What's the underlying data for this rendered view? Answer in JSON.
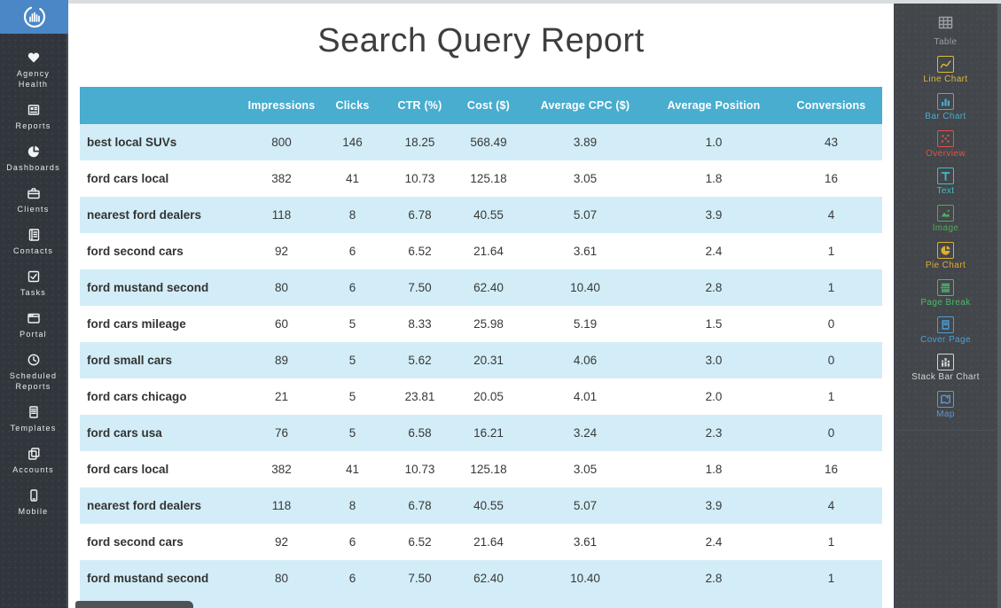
{
  "app": {
    "logo_name": "report-dial-logo"
  },
  "left_sidebar": {
    "items": [
      {
        "label": "Agency Health",
        "icon": "heart-icon"
      },
      {
        "label": "Reports",
        "icon": "newspaper-icon"
      },
      {
        "label": "Dashboards",
        "icon": "pie-gauge-icon"
      },
      {
        "label": "Clients",
        "icon": "briefcase-icon"
      },
      {
        "label": "Contacts",
        "icon": "address-book-icon"
      },
      {
        "label": "Tasks",
        "icon": "checkbox-icon"
      },
      {
        "label": "Portal",
        "icon": "browser-window-icon"
      },
      {
        "label": "Scheduled Reports",
        "icon": "clock-icon"
      },
      {
        "label": "Templates",
        "icon": "document-icon"
      },
      {
        "label": "Accounts",
        "icon": "stacked-cards-icon"
      },
      {
        "label": "Mobile",
        "icon": "smartphone-icon"
      }
    ]
  },
  "report": {
    "title": "Search Query Report",
    "table": {
      "columns": [
        "",
        "Impressions",
        "Clicks",
        "CTR (%)",
        "Cost ($)",
        "Average CPC ($)",
        "Average Position",
        "Conversions"
      ],
      "rows": [
        {
          "query": "best local SUVs",
          "impressions": "800",
          "clicks": "146",
          "ctr": "18.25",
          "cost": "568.49",
          "avg_cpc": "3.89",
          "avg_position": "1.0",
          "conversions": "43"
        },
        {
          "query": "ford cars local",
          "impressions": "382",
          "clicks": "41",
          "ctr": "10.73",
          "cost": "125.18",
          "avg_cpc": "3.05",
          "avg_position": "1.8",
          "conversions": "16"
        },
        {
          "query": "nearest ford dealers",
          "impressions": "118",
          "clicks": "8",
          "ctr": "6.78",
          "cost": "40.55",
          "avg_cpc": "5.07",
          "avg_position": "3.9",
          "conversions": "4"
        },
        {
          "query": "ford second cars",
          "impressions": "92",
          "clicks": "6",
          "ctr": "6.52",
          "cost": "21.64",
          "avg_cpc": "3.61",
          "avg_position": "2.4",
          "conversions": "1"
        },
        {
          "query": "ford mustand second",
          "impressions": "80",
          "clicks": "6",
          "ctr": "7.50",
          "cost": "62.40",
          "avg_cpc": "10.40",
          "avg_position": "2.8",
          "conversions": "1"
        },
        {
          "query": "ford cars mileage",
          "impressions": "60",
          "clicks": "5",
          "ctr": "8.33",
          "cost": "25.98",
          "avg_cpc": "5.19",
          "avg_position": "1.5",
          "conversions": "0"
        },
        {
          "query": "ford small cars",
          "impressions": "89",
          "clicks": "5",
          "ctr": "5.62",
          "cost": "20.31",
          "avg_cpc": "4.06",
          "avg_position": "3.0",
          "conversions": "0"
        },
        {
          "query": "ford cars chicago",
          "impressions": "21",
          "clicks": "5",
          "ctr": "23.81",
          "cost": "20.05",
          "avg_cpc": "4.01",
          "avg_position": "2.0",
          "conversions": "1"
        },
        {
          "query": "ford cars usa",
          "impressions": "76",
          "clicks": "5",
          "ctr": "6.58",
          "cost": "16.21",
          "avg_cpc": "3.24",
          "avg_position": "2.3",
          "conversions": "0"
        },
        {
          "query": "ford cars local",
          "impressions": "382",
          "clicks": "41",
          "ctr": "10.73",
          "cost": "125.18",
          "avg_cpc": "3.05",
          "avg_position": "1.8",
          "conversions": "16"
        },
        {
          "query": "nearest ford dealers",
          "impressions": "118",
          "clicks": "8",
          "ctr": "6.78",
          "cost": "40.55",
          "avg_cpc": "5.07",
          "avg_position": "3.9",
          "conversions": "4"
        },
        {
          "query": "ford second cars",
          "impressions": "92",
          "clicks": "6",
          "ctr": "6.52",
          "cost": "21.64",
          "avg_cpc": "3.61",
          "avg_position": "2.4",
          "conversions": "1"
        },
        {
          "query": "ford mustand second",
          "impressions": "80",
          "clicks": "6",
          "ctr": "7.50",
          "cost": "62.40",
          "avg_cpc": "10.40",
          "avg_position": "2.8",
          "conversions": "1"
        }
      ]
    }
  },
  "right_sidebar": {
    "widgets": [
      {
        "label": "Table",
        "icon": "table-icon",
        "color": "#9ba1a6"
      },
      {
        "label": "Line Chart",
        "icon": "line-chart-icon",
        "color": "#dfba3c"
      },
      {
        "label": "Bar Chart",
        "icon": "bar-chart-icon",
        "color": "#49add2"
      },
      {
        "label": "Overview",
        "icon": "overview-icon",
        "color": "#d9574a"
      },
      {
        "label": "Text",
        "icon": "text-icon",
        "color": "#3ec0c9"
      },
      {
        "label": "Image",
        "icon": "image-icon",
        "color": "#4cb05b"
      },
      {
        "label": "Pie Chart",
        "icon": "pie-chart-icon",
        "color": "#dfae2f"
      },
      {
        "label": "Page Break",
        "icon": "page-break-icon",
        "color": "#49bb6e"
      },
      {
        "label": "Cover Page",
        "icon": "cover-page-icon",
        "color": "#4aa0dc"
      },
      {
        "label": "Stack Bar Chart",
        "icon": "stack-bar-chart-icon",
        "color": "#d3d7da"
      },
      {
        "label": "Map",
        "icon": "map-icon",
        "color": "#5b9bd5"
      }
    ]
  },
  "colors": {
    "table_header_bg": "#48adcf",
    "row_alt_bg": "#d2edf7",
    "left_sidebar_bg": "#30363b",
    "right_sidebar_bg": "#43464a",
    "logo_bg": "#4b87c6"
  }
}
